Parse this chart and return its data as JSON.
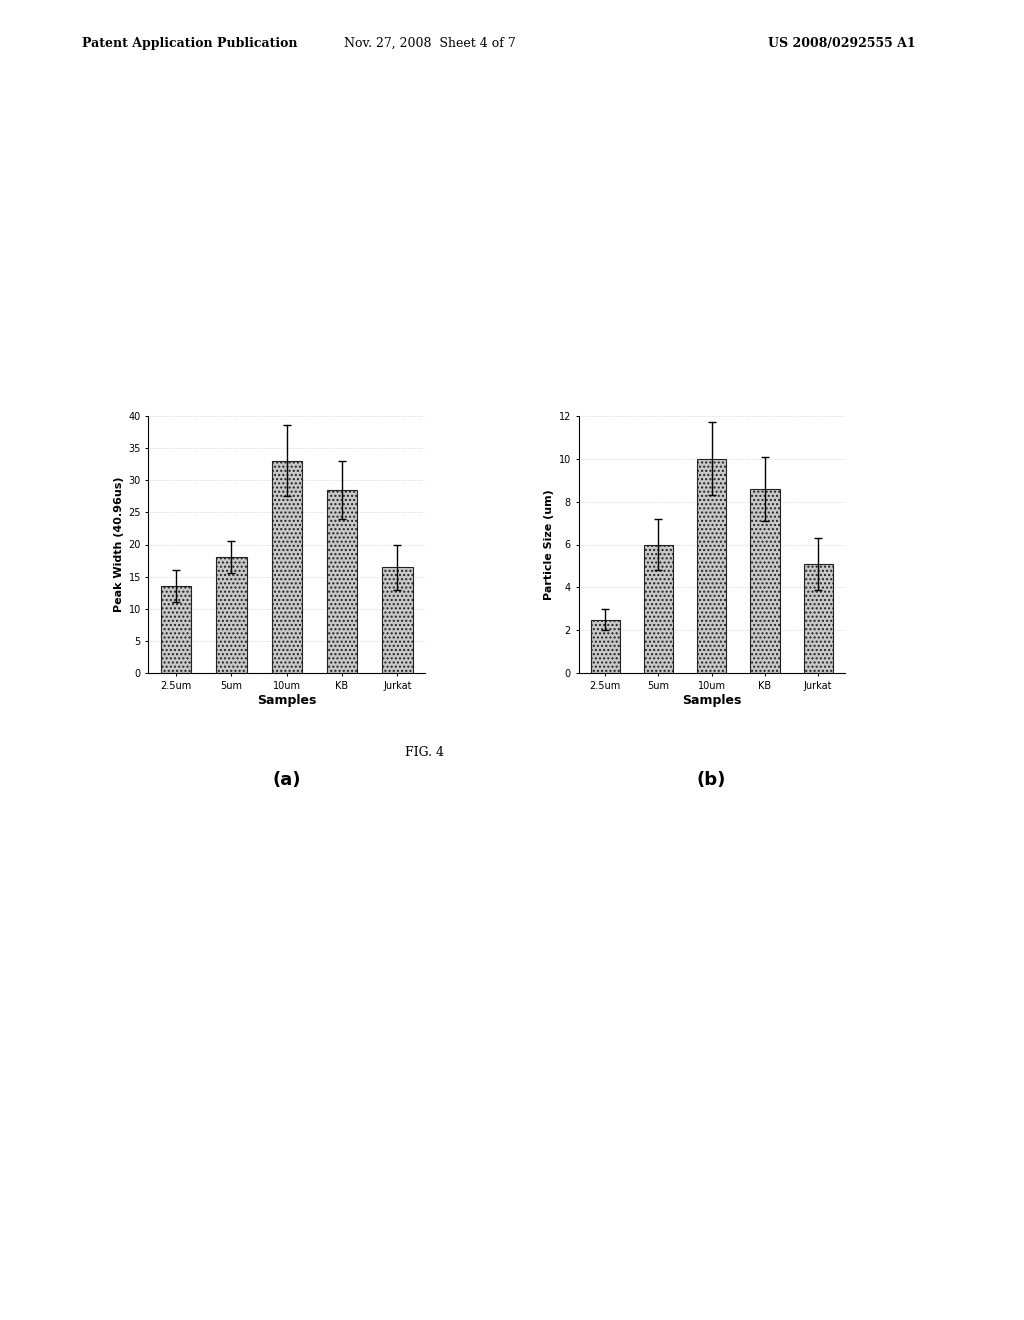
{
  "chart_a": {
    "categories": [
      "2.5um",
      "5um",
      "10um",
      "KB",
      "Jurkat"
    ],
    "values": [
      13.5,
      18.0,
      33.0,
      28.5,
      16.5
    ],
    "errors": [
      2.5,
      2.5,
      5.5,
      4.5,
      3.5
    ],
    "ylabel": "Peak Width (40.96us)",
    "xlabel": "Samples",
    "sublabel": "(a)",
    "ylim": [
      0,
      40
    ],
    "yticks": [
      0,
      5,
      10,
      15,
      20,
      25,
      30,
      35,
      40
    ]
  },
  "chart_b": {
    "categories": [
      "2.5um",
      "5um",
      "10um",
      "KB",
      "Jurkat"
    ],
    "values": [
      2.5,
      6.0,
      10.0,
      8.6,
      5.1
    ],
    "errors": [
      0.5,
      1.2,
      1.7,
      1.5,
      1.2
    ],
    "ylabel": "Particle Size (um)",
    "xlabel": "Samples",
    "sublabel": "(b)",
    "ylim": [
      0,
      12
    ],
    "yticks": [
      0,
      2,
      4,
      6,
      8,
      10,
      12
    ]
  },
  "bar_color": "#c8c8c8",
  "bar_edgecolor": "#222222",
  "error_color": "#000000",
  "fig_caption": "FIG. 4",
  "header_left": "Patent Application Publication",
  "header_mid": "Nov. 27, 2008  Sheet 4 of 7",
  "header_right": "US 2008/0292555 A1",
  "background_color": "#ffffff",
  "axis_fontsize": 8,
  "tick_fontsize": 7,
  "sublabel_fontsize": 13,
  "xlabel_fontsize": 9,
  "header_fontsize": 9
}
